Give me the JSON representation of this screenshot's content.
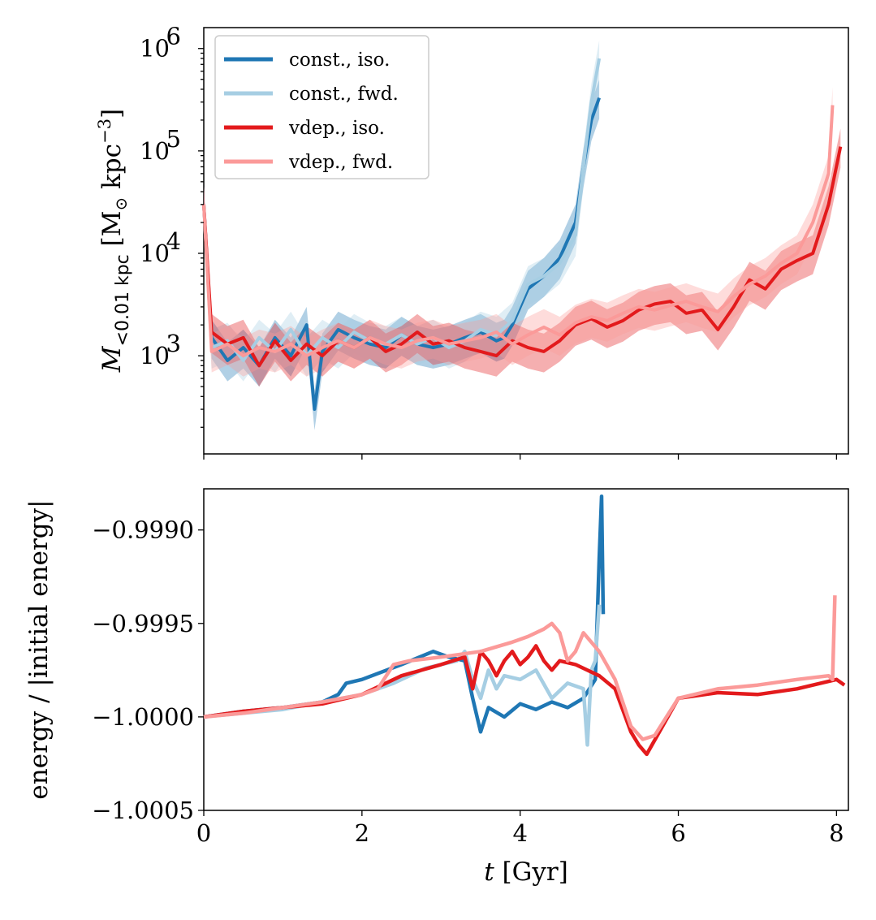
{
  "chart_data": [
    {
      "type": "line",
      "panel": "top",
      "yscale": "log",
      "xlim": [
        0,
        8.15
      ],
      "ylim": [
        110,
        1600000
      ],
      "ylabel": "M_{<0.01 kpc} [M_⊙ kpc^{-3}]",
      "yticks": [
        {
          "value": 1000,
          "base": "10",
          "exp": "3"
        },
        {
          "value": 10000,
          "base": "10",
          "exp": "4"
        },
        {
          "value": 100000,
          "base": "10",
          "exp": "5"
        },
        {
          "value": 1000000,
          "base": "10",
          "exp": "6"
        }
      ],
      "xticks": [
        0,
        2,
        4,
        6,
        8
      ],
      "legend": {
        "placement": "upper-left",
        "entries": [
          "const., iso.",
          "const., fwd.",
          "vdep., iso.",
          "vdep., fwd."
        ]
      },
      "series": [
        {
          "name": "const., iso.",
          "color": "#1f77b4",
          "x": [
            0,
            0.1,
            0.3,
            0.5,
            0.7,
            0.9,
            1.1,
            1.3,
            1.4,
            1.5,
            1.7,
            1.9,
            2.1,
            2.3,
            2.5,
            2.7,
            2.9,
            3.1,
            3.3,
            3.5,
            3.7,
            3.8,
            3.9,
            4.1,
            4.3,
            4.5,
            4.7,
            4.8,
            4.9,
            5.0
          ],
          "y": [
            30000,
            1500,
            900,
            1200,
            800,
            1500,
            1000,
            2000,
            300,
            1100,
            1800,
            1500,
            1300,
            1200,
            1600,
            1300,
            1200,
            1300,
            1500,
            1700,
            1400,
            1500,
            2000,
            4500,
            6000,
            9000,
            20000,
            70000,
            200000,
            330000
          ]
        },
        {
          "name": "const., fwd.",
          "color": "#a6cee3",
          "x": [
            0,
            0.1,
            0.3,
            0.5,
            0.7,
            0.9,
            1.1,
            1.3,
            1.5,
            1.7,
            1.9,
            2.1,
            2.3,
            2.5,
            2.7,
            2.9,
            3.1,
            3.3,
            3.5,
            3.7,
            3.9,
            4.1,
            4.3,
            4.5,
            4.7,
            4.8,
            4.9,
            5.0
          ],
          "y": [
            30000,
            1200,
            1400,
            900,
            1500,
            1100,
            1800,
            1000,
            1500,
            1200,
            1700,
            1400,
            1300,
            1600,
            1300,
            1500,
            1200,
            1400,
            1800,
            1600,
            2200,
            5000,
            6000,
            8000,
            15000,
            70000,
            300000,
            800000
          ]
        },
        {
          "name": "vdep., iso.",
          "color": "#e31a1c",
          "x": [
            0,
            0.1,
            0.3,
            0.5,
            0.7,
            0.9,
            1.1,
            1.3,
            1.5,
            1.7,
            1.9,
            2.1,
            2.3,
            2.5,
            2.7,
            2.9,
            3.1,
            3.3,
            3.5,
            3.7,
            3.9,
            4.1,
            4.3,
            4.5,
            4.7,
            4.9,
            5.1,
            5.3,
            5.5,
            5.7,
            5.9,
            6.1,
            6.3,
            6.5,
            6.7,
            6.9,
            7.1,
            7.3,
            7.5,
            7.7,
            7.9,
            8.05
          ],
          "y": [
            30000,
            1700,
            1300,
            1500,
            800,
            1400,
            900,
            1300,
            1000,
            1400,
            1200,
            1500,
            1100,
            1300,
            1700,
            1300,
            1400,
            1200,
            1100,
            1000,
            1400,
            1200,
            1100,
            1400,
            2000,
            2300,
            1900,
            2200,
            2800,
            3200,
            3400,
            2600,
            2800,
            1800,
            3000,
            5500,
            4500,
            7000,
            8500,
            10000,
            30000,
            110000
          ]
        },
        {
          "name": "vdep., fwd.",
          "color": "#fb9a99",
          "x": [
            0,
            0.1,
            0.3,
            0.5,
            0.7,
            0.9,
            1.1,
            1.3,
            1.5,
            1.7,
            1.9,
            2.1,
            2.3,
            2.5,
            2.7,
            2.9,
            3.1,
            3.3,
            3.5,
            3.7,
            3.9,
            4.1,
            4.3,
            4.5,
            4.7,
            4.9,
            5.1,
            5.3,
            5.5,
            5.7,
            5.9,
            6.1,
            6.3,
            6.5,
            6.7,
            6.9,
            7.1,
            7.3,
            7.5,
            7.7,
            7.9,
            7.95
          ],
          "y": [
            30000,
            1100,
            1300,
            1000,
            1200,
            1100,
            1300,
            1000,
            1200,
            1400,
            1200,
            1500,
            1300,
            1200,
            1400,
            1500,
            1300,
            1400,
            1500,
            1700,
            1300,
            1600,
            1900,
            1600,
            2100,
            2400,
            2200,
            2600,
            3000,
            2800,
            3100,
            3400,
            3000,
            2700,
            3800,
            5000,
            6000,
            8000,
            10000,
            20000,
            60000,
            280000
          ]
        }
      ]
    },
    {
      "type": "line",
      "panel": "bottom",
      "xlim": [
        0,
        8.15
      ],
      "ylim": [
        -1.0005,
        -0.99878
      ],
      "xlabel": "t [Gyr]",
      "ylabel": "energy / |initial energy|",
      "yticks": [
        {
          "value": -1.0005,
          "label": "−1.0005"
        },
        {
          "value": -1.0,
          "label": "−1.0000"
        },
        {
          "value": -0.9995,
          "label": "−0.9995"
        },
        {
          "value": -0.999,
          "label": "−0.9990"
        }
      ],
      "xticks": [
        0,
        2,
        4,
        6,
        8
      ],
      "series": [
        {
          "name": "const., iso.",
          "color": "#1f77b4",
          "x": [
            0,
            0.5,
            1.0,
            1.5,
            1.7,
            1.8,
            2.0,
            2.5,
            2.9,
            3.1,
            3.3,
            3.4,
            3.5,
            3.6,
            3.8,
            4.0,
            4.2,
            4.4,
            4.6,
            4.8,
            4.95,
            5.0,
            5.03,
            5.05
          ],
          "y": [
            -1.0,
            -0.99997,
            -0.99995,
            -0.99992,
            -0.99988,
            -0.99982,
            -0.9998,
            -0.99972,
            -0.99965,
            -0.99968,
            -0.9997,
            -0.9999,
            -1.00008,
            -0.99995,
            -1.0,
            -0.99993,
            -0.99996,
            -0.99992,
            -0.99995,
            -0.9999,
            -0.9998,
            -0.99915,
            -0.99882,
            -0.99945
          ]
        },
        {
          "name": "const., fwd.",
          "color": "#a6cee3",
          "x": [
            0,
            0.5,
            1.0,
            1.5,
            2.0,
            2.4,
            2.6,
            2.8,
            3.0,
            3.2,
            3.3,
            3.4,
            3.5,
            3.6,
            3.7,
            3.8,
            4.0,
            4.2,
            4.4,
            4.6,
            4.8,
            4.85,
            4.9,
            4.95,
            5.0
          ],
          "y": [
            -1.0,
            -0.99998,
            -0.99996,
            -0.99992,
            -0.99988,
            -0.99982,
            -0.99978,
            -0.99974,
            -0.99972,
            -0.9997,
            -0.99965,
            -0.9998,
            -0.9999,
            -0.99975,
            -0.99985,
            -0.99978,
            -0.9998,
            -0.99975,
            -0.9999,
            -0.99982,
            -0.99985,
            -1.00015,
            -0.99975,
            -0.9997,
            -0.9994
          ]
        },
        {
          "name": "vdep., iso.",
          "color": "#e31a1c",
          "x": [
            0,
            0.5,
            1.0,
            1.5,
            2.0,
            2.5,
            3.0,
            3.3,
            3.4,
            3.5,
            3.6,
            3.7,
            3.8,
            3.9,
            4.0,
            4.1,
            4.2,
            4.3,
            4.4,
            4.5,
            4.7,
            5.0,
            5.2,
            5.4,
            5.5,
            5.6,
            5.8,
            6.0,
            6.5,
            7.0,
            7.5,
            8.0,
            8.1
          ],
          "y": [
            -1.0,
            -0.99997,
            -0.99995,
            -0.99993,
            -0.99988,
            -0.99978,
            -0.99972,
            -0.99968,
            -0.99985,
            -0.99965,
            -0.9997,
            -0.99978,
            -0.9997,
            -0.99965,
            -0.99972,
            -0.99968,
            -0.99962,
            -0.9997,
            -0.99975,
            -0.9997,
            -0.99972,
            -0.99978,
            -0.99985,
            -1.00008,
            -1.00015,
            -1.0002,
            -1.00005,
            -0.9999,
            -0.99987,
            -0.99988,
            -0.99985,
            -0.9998,
            -0.99983
          ]
        },
        {
          "name": "vdep., fwd.",
          "color": "#fb9a99",
          "x": [
            0,
            0.5,
            1.0,
            1.5,
            2.0,
            2.2,
            2.4,
            2.6,
            3.0,
            3.5,
            3.9,
            4.1,
            4.3,
            4.4,
            4.5,
            4.6,
            4.7,
            4.8,
            5.0,
            5.2,
            5.4,
            5.55,
            5.7,
            6.0,
            6.5,
            7.0,
            7.5,
            7.9,
            7.95,
            7.98
          ],
          "y": [
            -1.0,
            -0.99998,
            -0.99995,
            -0.99992,
            -0.99988,
            -0.99985,
            -0.99972,
            -0.9997,
            -0.99968,
            -0.99965,
            -0.9996,
            -0.99957,
            -0.99953,
            -0.9995,
            -0.99955,
            -0.9997,
            -0.99965,
            -0.99955,
            -0.99965,
            -0.9998,
            -1.00005,
            -1.00012,
            -1.0001,
            -0.9999,
            -0.99985,
            -0.99983,
            -0.9998,
            -0.99978,
            -0.9998,
            -0.99935
          ]
        }
      ]
    }
  ]
}
